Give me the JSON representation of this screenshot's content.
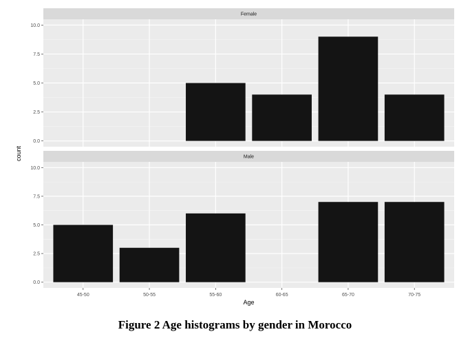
{
  "caption": "Figure 2 Age histograms by gender in Morocco",
  "colors": {
    "bar": "#141414",
    "panel_bg": "#ebebeb",
    "strip_bg": "#d9d9d9",
    "grid": "#ffffff"
  },
  "chart_data": {
    "type": "bar",
    "facet_by": "gender",
    "xlabel": "Age",
    "ylabel": "count",
    "categories": [
      "45-50",
      "50-55",
      "55-60",
      "60-65",
      "65-70",
      "70-75"
    ],
    "ylim": [
      0,
      10
    ],
    "yticks": [
      "0.0",
      "2.5",
      "5.0",
      "7.5",
      "10.0"
    ],
    "grid": true,
    "panels": [
      {
        "name": "Female",
        "values": [
          0,
          0,
          5,
          4,
          9,
          4
        ]
      },
      {
        "name": "Male",
        "values": [
          5,
          3,
          6,
          0,
          7,
          7
        ]
      }
    ]
  }
}
